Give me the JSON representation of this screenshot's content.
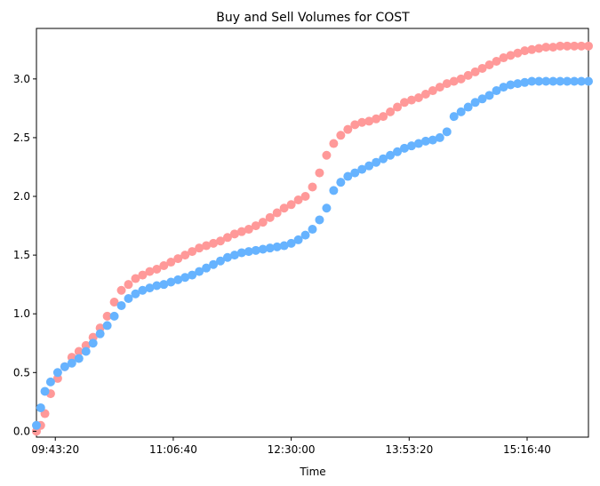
{
  "chart_data": {
    "type": "scatter",
    "title": "Buy and Sell Volumes for COST",
    "xlabel": "Time",
    "ylabel": "",
    "x_ticks": [
      "09:43:20",
      "11:06:40",
      "12:30:00",
      "13:53:20",
      "15:16:40"
    ],
    "y_ticks": [
      "0.0",
      "0.5",
      "1.0",
      "1.5",
      "2.0",
      "2.5",
      "3.0"
    ],
    "xlim": [
      "09:30:00",
      "16:00:00"
    ],
    "ylim": [
      -0.05,
      3.43
    ],
    "grid": false,
    "colors": {
      "sell_light": "#ff9999",
      "buy_light": "#66b3ff",
      "sell_dark": "#ff0000",
      "buy_dark": "#0000ff",
      "green": "#008000"
    },
    "series": [
      {
        "color": "#ff9999",
        "x": [
          "09:30",
          "09:33",
          "09:36",
          "09:40",
          "09:45",
          "09:50",
          "09:55",
          "10:00",
          "10:05",
          "10:10",
          "10:15",
          "10:20",
          "10:25",
          "10:30",
          "10:35",
          "10:40",
          "10:45",
          "10:50",
          "10:55",
          "11:00",
          "11:05",
          "11:10",
          "11:15",
          "11:20",
          "11:25",
          "11:30",
          "11:35",
          "11:40",
          "11:45",
          "11:50",
          "11:55",
          "12:00",
          "12:05",
          "12:10",
          "12:15",
          "12:20",
          "12:25",
          "12:30",
          "12:35",
          "12:40",
          "12:45",
          "12:50",
          "12:55",
          "13:00",
          "13:05",
          "13:10",
          "13:15",
          "13:20",
          "13:25",
          "13:30",
          "13:35",
          "13:40",
          "13:45",
          "13:50",
          "13:55",
          "14:00",
          "14:05",
          "14:10",
          "14:15",
          "14:20",
          "14:25",
          "14:30",
          "14:35",
          "14:40",
          "14:45",
          "14:50",
          "14:55",
          "15:00",
          "15:05",
          "15:10",
          "15:15",
          "15:20",
          "15:25",
          "15:30",
          "15:35",
          "15:40",
          "15:45",
          "15:50",
          "15:55",
          "16:00"
        ],
        "y": [
          0.0,
          0.05,
          0.15,
          0.32,
          0.45,
          0.55,
          0.63,
          0.68,
          0.73,
          0.8,
          0.88,
          0.98,
          1.1,
          1.2,
          1.25,
          1.3,
          1.33,
          1.36,
          1.38,
          1.41,
          1.44,
          1.47,
          1.5,
          1.53,
          1.56,
          1.58,
          1.6,
          1.62,
          1.65,
          1.68,
          1.7,
          1.72,
          1.75,
          1.78,
          1.82,
          1.86,
          1.9,
          1.93,
          1.97,
          2.0,
          2.08,
          2.2,
          2.35,
          2.45,
          2.52,
          2.57,
          2.61,
          2.63,
          2.64,
          2.66,
          2.68,
          2.72,
          2.76,
          2.8,
          2.82,
          2.84,
          2.87,
          2.9,
          2.93,
          2.96,
          2.98,
          3.0,
          3.03,
          3.06,
          3.09,
          3.12,
          3.15,
          3.18,
          3.2,
          3.22,
          3.24,
          3.25,
          3.26,
          3.27,
          3.27,
          3.28,
          3.28,
          3.28,
          3.28,
          3.28
        ]
      },
      {
        "color": "#66b3ff",
        "x": [
          "09:30",
          "09:33",
          "09:36",
          "09:40",
          "09:45",
          "09:50",
          "09:55",
          "10:00",
          "10:05",
          "10:10",
          "10:15",
          "10:20",
          "10:25",
          "10:30",
          "10:35",
          "10:40",
          "10:45",
          "10:50",
          "10:55",
          "11:00",
          "11:05",
          "11:10",
          "11:15",
          "11:20",
          "11:25",
          "11:30",
          "11:35",
          "11:40",
          "11:45",
          "11:50",
          "11:55",
          "12:00",
          "12:05",
          "12:10",
          "12:15",
          "12:20",
          "12:25",
          "12:30",
          "12:35",
          "12:40",
          "12:45",
          "12:50",
          "12:55",
          "13:00",
          "13:05",
          "13:10",
          "13:15",
          "13:20",
          "13:25",
          "13:30",
          "13:35",
          "13:40",
          "13:45",
          "13:50",
          "13:55",
          "14:00",
          "14:05",
          "14:10",
          "14:15",
          "14:20",
          "14:25",
          "14:30",
          "14:35",
          "14:40",
          "14:45",
          "14:50",
          "14:55",
          "15:00",
          "15:05",
          "15:10",
          "15:15",
          "15:20",
          "15:25",
          "15:30",
          "15:35",
          "15:40",
          "15:45",
          "15:50",
          "15:55",
          "16:00"
        ],
        "y": [
          0.05,
          0.2,
          0.34,
          0.42,
          0.5,
          0.55,
          0.58,
          0.62,
          0.68,
          0.75,
          0.83,
          0.9,
          0.98,
          1.07,
          1.13,
          1.17,
          1.2,
          1.22,
          1.24,
          1.25,
          1.27,
          1.29,
          1.31,
          1.33,
          1.36,
          1.39,
          1.42,
          1.45,
          1.48,
          1.5,
          1.52,
          1.53,
          1.54,
          1.55,
          1.56,
          1.57,
          1.58,
          1.6,
          1.63,
          1.67,
          1.72,
          1.8,
          1.9,
          2.05,
          2.12,
          2.17,
          2.2,
          2.23,
          2.26,
          2.29,
          2.32,
          2.35,
          2.38,
          2.41,
          2.43,
          2.45,
          2.47,
          2.48,
          2.5,
          2.55,
          2.68,
          2.72,
          2.76,
          2.8,
          2.83,
          2.86,
          2.9,
          2.93,
          2.95,
          2.96,
          2.97,
          2.98,
          2.98,
          2.98,
          2.98,
          2.98,
          2.98,
          2.98,
          2.98,
          2.98
        ]
      }
    ]
  }
}
